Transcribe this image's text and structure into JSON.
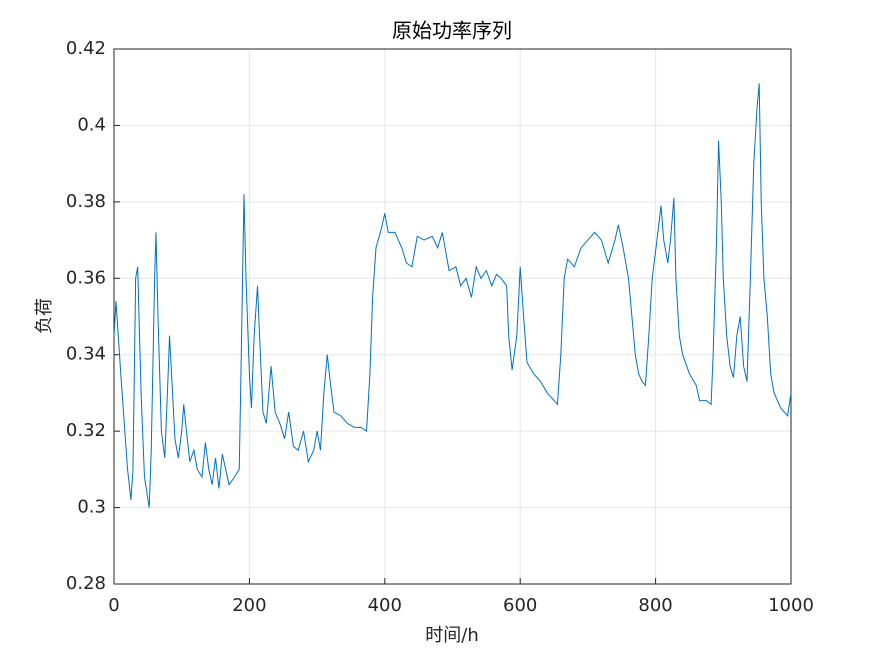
{
  "chart_data": {
    "type": "line",
    "title": "原始功率序列",
    "xlabel": "时间/h",
    "ylabel": "负荷",
    "xlim": [
      0,
      1000
    ],
    "xticks": [
      0,
      200,
      400,
      600,
      800,
      1000
    ],
    "ylim": [
      0.28,
      0.42
    ],
    "yticks": [
      0.28,
      0.3,
      0.32,
      0.34,
      0.36,
      0.38,
      0.4,
      0.42
    ],
    "grid": true,
    "x": [
      0,
      3,
      10,
      20,
      25,
      28,
      32,
      35,
      40,
      45,
      52,
      55,
      60,
      62,
      65,
      70,
      75,
      80,
      82,
      85,
      90,
      95,
      100,
      103,
      107,
      112,
      118,
      123,
      130,
      135,
      140,
      145,
      150,
      155,
      160,
      165,
      170,
      178,
      185,
      188,
      192,
      195,
      200,
      203,
      207,
      212,
      215,
      220,
      225,
      232,
      238,
      245,
      252,
      258,
      265,
      272,
      280,
      287,
      295,
      300,
      305,
      310,
      315,
      320,
      325,
      335,
      345,
      355,
      365,
      373,
      378,
      382,
      387,
      395,
      400,
      405,
      415,
      425,
      432,
      440,
      448,
      458,
      470,
      478,
      485,
      490,
      495,
      505,
      512,
      520,
      528,
      535,
      542,
      550,
      558,
      565,
      572,
      580,
      583,
      588,
      595,
      600,
      605,
      610,
      620,
      630,
      640,
      650,
      655,
      660,
      665,
      670,
      680,
      690,
      700,
      710,
      720,
      730,
      740,
      745,
      752,
      760,
      765,
      770,
      775,
      780,
      785,
      790,
      795,
      802,
      808,
      812,
      818,
      822,
      827,
      830,
      835,
      840,
      850,
      860,
      865,
      875,
      882,
      885,
      890,
      893,
      897,
      900,
      905,
      910,
      915,
      920,
      925,
      930,
      935,
      940,
      945,
      950,
      953,
      956,
      960,
      965,
      970,
      975,
      985,
      995,
      1000
    ],
    "series": [
      {
        "name": "负荷",
        "color": "#0072bd",
        "values": [
          0.345,
          0.354,
          0.335,
          0.31,
          0.302,
          0.31,
          0.36,
          0.363,
          0.33,
          0.308,
          0.3,
          0.315,
          0.36,
          0.372,
          0.35,
          0.32,
          0.313,
          0.335,
          0.345,
          0.335,
          0.318,
          0.313,
          0.32,
          0.327,
          0.32,
          0.312,
          0.315,
          0.31,
          0.308,
          0.317,
          0.31,
          0.306,
          0.313,
          0.305,
          0.314,
          0.31,
          0.306,
          0.308,
          0.31,
          0.34,
          0.382,
          0.36,
          0.335,
          0.326,
          0.345,
          0.358,
          0.345,
          0.325,
          0.322,
          0.337,
          0.325,
          0.322,
          0.318,
          0.325,
          0.316,
          0.315,
          0.32,
          0.312,
          0.315,
          0.32,
          0.315,
          0.33,
          0.34,
          0.332,
          0.325,
          0.324,
          0.322,
          0.321,
          0.321,
          0.32,
          0.335,
          0.355,
          0.368,
          0.373,
          0.377,
          0.372,
          0.372,
          0.368,
          0.364,
          0.363,
          0.371,
          0.37,
          0.371,
          0.368,
          0.372,
          0.367,
          0.362,
          0.363,
          0.358,
          0.36,
          0.355,
          0.363,
          0.36,
          0.362,
          0.358,
          0.361,
          0.36,
          0.358,
          0.345,
          0.336,
          0.345,
          0.363,
          0.35,
          0.338,
          0.335,
          0.333,
          0.33,
          0.328,
          0.327,
          0.34,
          0.36,
          0.365,
          0.363,
          0.368,
          0.37,
          0.372,
          0.37,
          0.364,
          0.37,
          0.374,
          0.368,
          0.36,
          0.35,
          0.34,
          0.335,
          0.333,
          0.332,
          0.345,
          0.36,
          0.37,
          0.379,
          0.37,
          0.364,
          0.37,
          0.381,
          0.36,
          0.345,
          0.34,
          0.335,
          0.332,
          0.328,
          0.328,
          0.327,
          0.34,
          0.37,
          0.396,
          0.38,
          0.36,
          0.345,
          0.337,
          0.334,
          0.345,
          0.35,
          0.337,
          0.333,
          0.36,
          0.39,
          0.405,
          0.411,
          0.38,
          0.36,
          0.35,
          0.335,
          0.33,
          0.326,
          0.324,
          0.33
        ]
      }
    ]
  }
}
